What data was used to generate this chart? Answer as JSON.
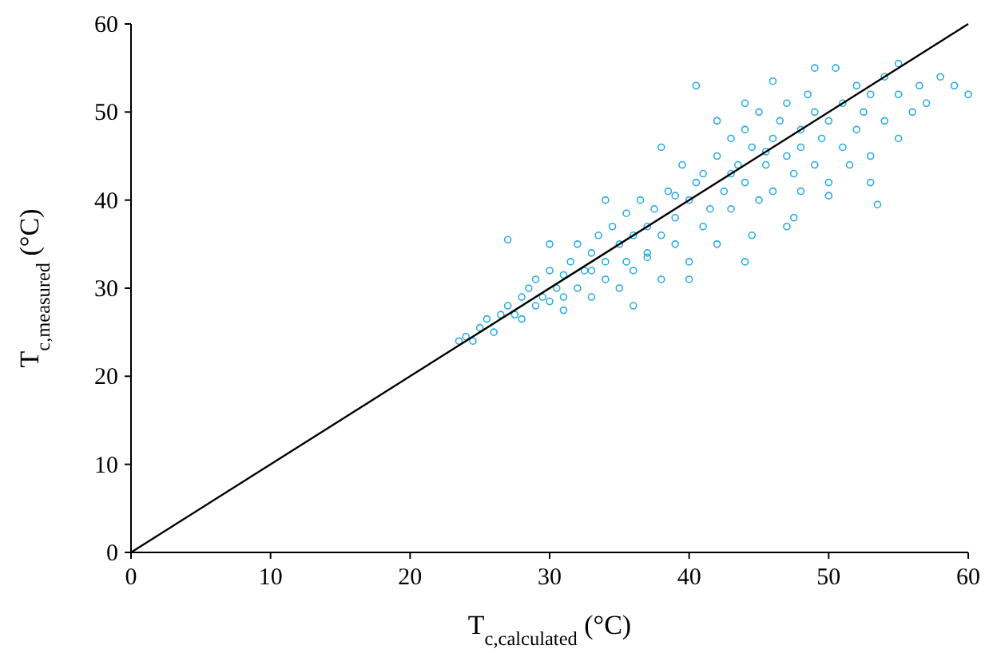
{
  "chart_data": {
    "type": "scatter",
    "xlabel": "T$_{c,calculated}$ (°C)",
    "ylabel": "T$_{c,measured}$ (°C)",
    "xlim": [
      0,
      60
    ],
    "ylim": [
      0,
      60
    ],
    "xticks": [
      0,
      10,
      20,
      30,
      40,
      50,
      60
    ],
    "yticks": [
      0,
      10,
      20,
      30,
      40,
      50,
      60
    ],
    "grid": false,
    "series": [
      {
        "color": "#29abe2",
        "marker": "circle",
        "x": [
          23.5,
          24,
          24.5,
          25,
          25.5,
          26,
          26.5,
          27,
          27,
          27.5,
          28,
          28,
          28.5,
          29,
          29,
          29.5,
          30,
          30,
          30.5,
          31,
          31,
          31.5,
          32,
          32,
          32.5,
          33,
          33,
          33.5,
          34,
          34,
          34.5,
          35,
          35,
          35.5,
          35.5,
          36,
          36,
          36.5,
          37,
          37,
          37.5,
          38,
          38,
          38.5,
          39,
          39,
          39.5,
          40,
          40,
          40.5,
          40.5,
          41,
          41,
          41.5,
          42,
          42,
          42.5,
          43,
          43,
          43.5,
          44,
          44,
          44.5,
          44.5,
          45,
          45,
          45.5,
          46,
          46,
          46.5,
          47,
          47,
          47.5,
          47.5,
          48,
          48,
          48.5,
          49,
          49,
          49.5,
          50,
          50,
          50.5,
          51,
          51,
          51.5,
          52,
          52,
          52.5,
          53,
          53,
          53.5,
          54,
          54,
          55,
          55,
          56,
          56.5,
          57,
          58,
          59,
          60,
          46,
          49,
          44,
          42,
          38,
          34,
          30,
          53,
          50,
          48,
          36,
          40,
          44,
          47,
          55,
          45.5,
          43,
          39,
          37,
          33,
          31
        ],
        "values": [
          24,
          24.5,
          24,
          25.5,
          26.5,
          25,
          27,
          35.5,
          28,
          27,
          29,
          26.5,
          30,
          28,
          31,
          29,
          32,
          28.5,
          30,
          31.5,
          27.5,
          33,
          30,
          35,
          32,
          29,
          34,
          36,
          31,
          33,
          37,
          30,
          35,
          33,
          38.5,
          36,
          32,
          40,
          34,
          37,
          39,
          31,
          36,
          41,
          35,
          38,
          44,
          33,
          40,
          42,
          53,
          37,
          43,
          39,
          45,
          35,
          41,
          47,
          39,
          44,
          42,
          48,
          36,
          46,
          40,
          50,
          44,
          47,
          41,
          49,
          45,
          51,
          38,
          43,
          48,
          46,
          52,
          44,
          50,
          47,
          42,
          49,
          55,
          46,
          51,
          44,
          48,
          53,
          50,
          45,
          52,
          39.5,
          49,
          54,
          47,
          52,
          50,
          53,
          51,
          54,
          53,
          52,
          53.5,
          55,
          51,
          49,
          46,
          40,
          35,
          42,
          40.5,
          41,
          28,
          31,
          33,
          37,
          55.5,
          45.5,
          43,
          40.5,
          33.5,
          32,
          29
        ]
      },
      {
        "type": "line",
        "color": "#000000",
        "marker": "none",
        "line_style": "solid",
        "x": [
          0,
          60
        ],
        "values": [
          0,
          60
        ]
      }
    ]
  }
}
